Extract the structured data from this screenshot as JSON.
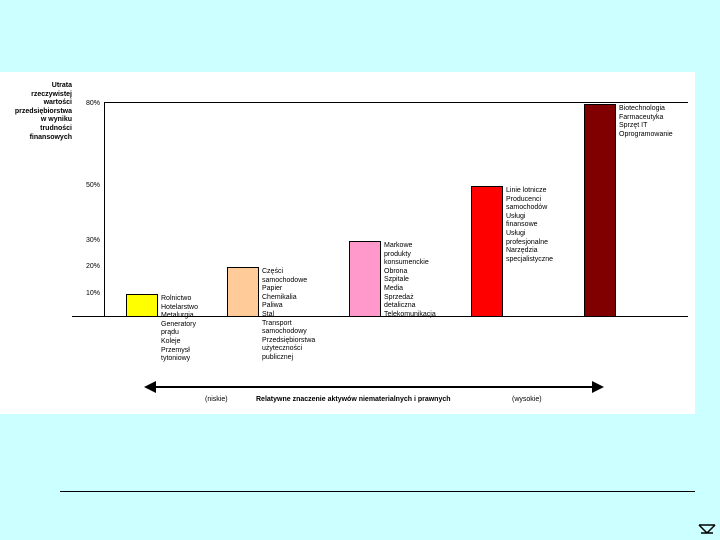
{
  "chart_data": {
    "type": "bar",
    "ylabel_lines": [
      "Utrata",
      "rzeczywistej",
      "wartości",
      "przedsiębiorstwa",
      "w wyniku",
      "trudności",
      "finansowych"
    ],
    "ylim": [
      0,
      80
    ],
    "y_ticks": [
      {
        "value": 10,
        "label": "10%"
      },
      {
        "value": 20,
        "label": "20%"
      },
      {
        "value": 30,
        "label": "30%"
      },
      {
        "value": 50,
        "label": "50%"
      },
      {
        "value": 80,
        "label": "80%"
      }
    ],
    "bars": [
      {
        "value": 10,
        "color": "#ffff00",
        "categories": [
          "Rolnictwo",
          "Hotelarstwo",
          "Metalurgia",
          "Generatory",
          "prądu",
          "Koleje",
          "Przemysł",
          "tytoniowy"
        ]
      },
      {
        "value": 20,
        "color": "#ffcc99",
        "categories": [
          "Części",
          "samochodowe",
          "Papier",
          "Chemikalia",
          "Paliwa",
          "Stal",
          "Transport",
          "samochodowy",
          "Przedsiębiorstwa",
          "użyteczności",
          "publicznej"
        ]
      },
      {
        "value": 30,
        "color": "#ff99cc",
        "categories": [
          "Markowe",
          "produkty",
          "konsumenckie",
          "Obrona",
          "Szpitale",
          "Media",
          "Sprzedaż",
          "detaliczna",
          "Telekomunikacja"
        ]
      },
      {
        "value": 50,
        "color": "#ff0000",
        "categories": [
          "Linie lotnicze",
          "Producenci",
          "samochodów",
          "Usługi",
          "finansowe",
          "Usługi",
          "profesjonalne",
          "Narzędzia",
          "specjalistyczne"
        ]
      },
      {
        "value": 80,
        "color": "#800000",
        "categories": [
          "Biotechnologia",
          "Farmaceutyka",
          "Sprzęt IT",
          "Oprogramowanie"
        ]
      }
    ],
    "xlabel": "Relatywne znaczenie aktywów niematerialnych i prawnych",
    "x_low": "(niskie)",
    "x_high": "(wysokie)"
  },
  "colors": {
    "background": "#ccffff",
    "panel": "#ffffff"
  }
}
